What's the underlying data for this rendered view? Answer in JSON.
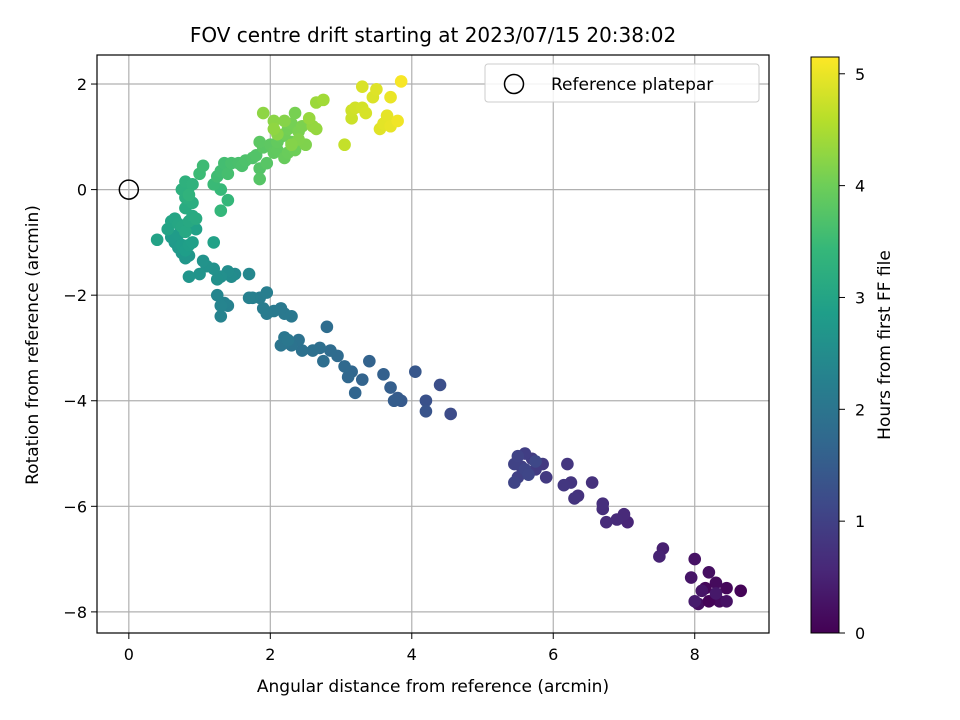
{
  "chart_data": {
    "type": "scatter",
    "title": "FOV centre drift starting at 2023/07/15 20:38:02",
    "xlabel": "Angular distance from reference (arcmin)",
    "ylabel": "Rotation from reference (arcmin)",
    "xlim": [
      -0.45,
      9.05
    ],
    "ylim": [
      -8.4,
      2.55
    ],
    "xticks": [
      "0",
      "2",
      "4",
      "6",
      "8"
    ],
    "yticks": [
      "2",
      "0",
      "−2",
      "−4",
      "−6",
      "−8"
    ],
    "grid": true,
    "legend": {
      "placement": "top-right",
      "entries": [
        "Reference platepar"
      ]
    },
    "reference_point": {
      "x": 0,
      "y": 0,
      "marker": "open-circle"
    },
    "colorbar": {
      "label": "Hours from first FF file",
      "range": [
        0,
        5.15
      ],
      "ticks": [
        "0",
        "1",
        "2",
        "3",
        "4",
        "5"
      ],
      "colormap": "viridis"
    },
    "colormap_stops": [
      "#440154",
      "#482878",
      "#3e4989",
      "#31688e",
      "#26828e",
      "#1f9e89",
      "#35b779",
      "#6ece58",
      "#b5de2b",
      "#fde725"
    ],
    "points": [
      {
        "x": 8.65,
        "y": -7.6,
        "c": 0.05
      },
      {
        "x": 8.45,
        "y": -7.55,
        "c": 0.1
      },
      {
        "x": 8.3,
        "y": -7.45,
        "c": 0.15
      },
      {
        "x": 8.2,
        "y": -7.25,
        "c": 0.2
      },
      {
        "x": 8.0,
        "y": -7.0,
        "c": 0.25
      },
      {
        "x": 7.95,
        "y": -7.35,
        "c": 0.3
      },
      {
        "x": 8.15,
        "y": -7.55,
        "c": 0.1
      },
      {
        "x": 8.35,
        "y": -7.8,
        "c": 0.15
      },
      {
        "x": 8.05,
        "y": -7.85,
        "c": 0.2
      },
      {
        "x": 8.2,
        "y": -7.8,
        "c": 0.05
      },
      {
        "x": 8.45,
        "y": -7.8,
        "c": 0.25
      },
      {
        "x": 8.1,
        "y": -7.6,
        "c": 0.3
      },
      {
        "x": 8.3,
        "y": -7.65,
        "c": 0.35
      },
      {
        "x": 8.0,
        "y": -7.8,
        "c": 0.4
      },
      {
        "x": 7.55,
        "y": -6.8,
        "c": 0.45
      },
      {
        "x": 7.5,
        "y": -6.95,
        "c": 0.5
      },
      {
        "x": 7.05,
        "y": -6.3,
        "c": 0.55
      },
      {
        "x": 7.0,
        "y": -6.15,
        "c": 0.6
      },
      {
        "x": 6.9,
        "y": -6.25,
        "c": 0.62
      },
      {
        "x": 6.75,
        "y": -6.3,
        "c": 0.65
      },
      {
        "x": 6.7,
        "y": -6.05,
        "c": 0.68
      },
      {
        "x": 6.7,
        "y": -5.95,
        "c": 0.7
      },
      {
        "x": 6.55,
        "y": -5.55,
        "c": 0.72
      },
      {
        "x": 6.35,
        "y": -5.8,
        "c": 0.75
      },
      {
        "x": 6.3,
        "y": -5.85,
        "c": 0.78
      },
      {
        "x": 6.25,
        "y": -5.55,
        "c": 0.8
      },
      {
        "x": 6.2,
        "y": -5.2,
        "c": 0.82
      },
      {
        "x": 6.15,
        "y": -5.6,
        "c": 0.84
      },
      {
        "x": 5.9,
        "y": -5.45,
        "c": 0.86
      },
      {
        "x": 5.85,
        "y": -5.2,
        "c": 0.88
      },
      {
        "x": 5.75,
        "y": -5.3,
        "c": 0.9
      },
      {
        "x": 5.7,
        "y": -5.1,
        "c": 0.92
      },
      {
        "x": 5.65,
        "y": -5.35,
        "c": 0.94
      },
      {
        "x": 5.6,
        "y": -5.0,
        "c": 0.96
      },
      {
        "x": 5.55,
        "y": -5.25,
        "c": 0.98
      },
      {
        "x": 5.5,
        "y": -5.45,
        "c": 1.0
      },
      {
        "x": 5.45,
        "y": -5.2,
        "c": 1.02
      },
      {
        "x": 5.5,
        "y": -5.05,
        "c": 1.04
      },
      {
        "x": 5.45,
        "y": -5.55,
        "c": 1.06
      },
      {
        "x": 5.6,
        "y": -5.3,
        "c": 1.08
      },
      {
        "x": 5.65,
        "y": -5.4,
        "c": 1.1
      },
      {
        "x": 5.75,
        "y": -5.15,
        "c": 1.12
      },
      {
        "x": 4.55,
        "y": -4.25,
        "c": 1.2
      },
      {
        "x": 4.4,
        "y": -3.7,
        "c": 1.25
      },
      {
        "x": 4.2,
        "y": -4.0,
        "c": 1.3
      },
      {
        "x": 4.2,
        "y": -4.2,
        "c": 1.35
      },
      {
        "x": 4.05,
        "y": -3.45,
        "c": 1.4
      },
      {
        "x": 3.85,
        "y": -4.0,
        "c": 1.45
      },
      {
        "x": 3.8,
        "y": -3.95,
        "c": 1.5
      },
      {
        "x": 3.75,
        "y": -4.0,
        "c": 1.52
      },
      {
        "x": 3.7,
        "y": -3.75,
        "c": 1.55
      },
      {
        "x": 3.6,
        "y": -3.5,
        "c": 1.58
      },
      {
        "x": 3.4,
        "y": -3.25,
        "c": 1.62
      },
      {
        "x": 3.3,
        "y": -3.6,
        "c": 1.65
      },
      {
        "x": 3.2,
        "y": -3.85,
        "c": 1.68
      },
      {
        "x": 3.15,
        "y": -3.45,
        "c": 1.7
      },
      {
        "x": 3.1,
        "y": -3.55,
        "c": 1.72
      },
      {
        "x": 3.05,
        "y": -3.35,
        "c": 1.75
      },
      {
        "x": 2.95,
        "y": -3.15,
        "c": 1.78
      },
      {
        "x": 2.85,
        "y": -3.05,
        "c": 1.8
      },
      {
        "x": 2.8,
        "y": -2.6,
        "c": 1.82
      },
      {
        "x": 2.75,
        "y": -3.25,
        "c": 1.85
      },
      {
        "x": 2.7,
        "y": -3.0,
        "c": 1.87
      },
      {
        "x": 2.6,
        "y": -3.05,
        "c": 1.9
      },
      {
        "x": 2.45,
        "y": -3.05,
        "c": 1.92
      },
      {
        "x": 2.4,
        "y": -2.85,
        "c": 1.94
      },
      {
        "x": 2.3,
        "y": -2.95,
        "c": 1.96
      },
      {
        "x": 2.2,
        "y": -2.9,
        "c": 1.98
      },
      {
        "x": 2.15,
        "y": -2.95,
        "c": 2.0
      },
      {
        "x": 2.2,
        "y": -2.8,
        "c": 2.02
      },
      {
        "x": 2.25,
        "y": -2.85,
        "c": 2.04
      },
      {
        "x": 2.3,
        "y": -2.4,
        "c": 2.06
      },
      {
        "x": 2.2,
        "y": -2.35,
        "c": 2.08
      },
      {
        "x": 2.15,
        "y": -2.25,
        "c": 2.1
      },
      {
        "x": 2.05,
        "y": -2.3,
        "c": 2.12
      },
      {
        "x": 1.95,
        "y": -2.35,
        "c": 2.14
      },
      {
        "x": 1.9,
        "y": -2.25,
        "c": 2.16
      },
      {
        "x": 1.85,
        "y": -2.05,
        "c": 2.18
      },
      {
        "x": 1.95,
        "y": -1.95,
        "c": 2.2
      },
      {
        "x": 1.75,
        "y": -2.05,
        "c": 2.22
      },
      {
        "x": 1.7,
        "y": -2.05,
        "c": 2.24
      },
      {
        "x": 1.4,
        "y": -2.2,
        "c": 2.26
      },
      {
        "x": 1.35,
        "y": -2.15,
        "c": 2.28
      },
      {
        "x": 1.3,
        "y": -2.4,
        "c": 2.3
      },
      {
        "x": 1.3,
        "y": -2.2,
        "c": 2.32
      },
      {
        "x": 1.25,
        "y": -2.0,
        "c": 2.34
      },
      {
        "x": 1.7,
        "y": -1.6,
        "c": 2.4
      },
      {
        "x": 1.5,
        "y": -1.6,
        "c": 2.45
      },
      {
        "x": 1.45,
        "y": -1.65,
        "c": 2.5
      },
      {
        "x": 1.4,
        "y": -1.55,
        "c": 2.52
      },
      {
        "x": 1.3,
        "y": -1.65,
        "c": 2.55
      },
      {
        "x": 1.25,
        "y": -1.7,
        "c": 2.58
      },
      {
        "x": 1.2,
        "y": -1.5,
        "c": 2.6
      },
      {
        "x": 1.1,
        "y": -1.45,
        "c": 2.62
      },
      {
        "x": 1.05,
        "y": -1.35,
        "c": 2.64
      },
      {
        "x": 1.0,
        "y": -1.6,
        "c": 2.66
      },
      {
        "x": 0.85,
        "y": -1.65,
        "c": 2.68
      },
      {
        "x": 0.85,
        "y": -1.25,
        "c": 2.7
      },
      {
        "x": 0.8,
        "y": -1.3,
        "c": 2.72
      },
      {
        "x": 0.75,
        "y": -1.2,
        "c": 2.74
      },
      {
        "x": 0.7,
        "y": -1.1,
        "c": 2.76
      },
      {
        "x": 0.65,
        "y": -1.0,
        "c": 2.78
      },
      {
        "x": 0.6,
        "y": -0.9,
        "c": 2.8
      },
      {
        "x": 0.7,
        "y": -0.85,
        "c": 2.82
      },
      {
        "x": 0.75,
        "y": -1.05,
        "c": 2.84
      },
      {
        "x": 0.8,
        "y": -1.15,
        "c": 2.86
      },
      {
        "x": 0.85,
        "y": -1.05,
        "c": 2.88
      },
      {
        "x": 0.9,
        "y": -1.0,
        "c": 2.9
      },
      {
        "x": 0.95,
        "y": -0.75,
        "c": 2.92
      },
      {
        "x": 1.2,
        "y": -1.0,
        "c": 2.94
      },
      {
        "x": 0.4,
        "y": -0.95,
        "c": 2.96
      },
      {
        "x": 0.55,
        "y": -0.75,
        "c": 2.98
      },
      {
        "x": 0.6,
        "y": -0.6,
        "c": 3.0
      },
      {
        "x": 0.65,
        "y": -0.55,
        "c": 3.02
      },
      {
        "x": 0.7,
        "y": -0.65,
        "c": 3.04
      },
      {
        "x": 0.75,
        "y": -0.7,
        "c": 3.06
      },
      {
        "x": 0.8,
        "y": -0.8,
        "c": 3.08
      },
      {
        "x": 0.85,
        "y": -0.6,
        "c": 3.1
      },
      {
        "x": 0.9,
        "y": -0.5,
        "c": 3.12
      },
      {
        "x": 0.95,
        "y": -0.55,
        "c": 3.14
      },
      {
        "x": 0.8,
        "y": -0.35,
        "c": 3.16
      },
      {
        "x": 0.85,
        "y": -0.2,
        "c": 3.18
      },
      {
        "x": 0.9,
        "y": -0.25,
        "c": 3.2
      },
      {
        "x": 0.8,
        "y": -0.15,
        "c": 3.22
      },
      {
        "x": 0.75,
        "y": 0.0,
        "c": 3.24
      },
      {
        "x": 0.85,
        "y": 0.05,
        "c": 3.26
      },
      {
        "x": 0.8,
        "y": 0.15,
        "c": 3.28
      },
      {
        "x": 0.9,
        "y": 0.1,
        "c": 3.3
      },
      {
        "x": 0.85,
        "y": -0.1,
        "c": 3.32
      },
      {
        "x": 1.3,
        "y": -0.4,
        "c": 3.4
      },
      {
        "x": 1.4,
        "y": -0.2,
        "c": 3.42
      },
      {
        "x": 1.3,
        "y": 0.0,
        "c": 3.45
      },
      {
        "x": 1.2,
        "y": 0.1,
        "c": 3.48
      },
      {
        "x": 1.0,
        "y": 0.3,
        "c": 3.5
      },
      {
        "x": 1.05,
        "y": 0.45,
        "c": 3.52
      },
      {
        "x": 1.25,
        "y": 0.25,
        "c": 3.54
      },
      {
        "x": 1.3,
        "y": 0.35,
        "c": 3.56
      },
      {
        "x": 1.35,
        "y": 0.5,
        "c": 3.58
      },
      {
        "x": 1.4,
        "y": 0.3,
        "c": 3.6
      },
      {
        "x": 1.45,
        "y": 0.5,
        "c": 3.62
      },
      {
        "x": 1.55,
        "y": 0.5,
        "c": 3.64
      },
      {
        "x": 1.6,
        "y": 0.45,
        "c": 3.66
      },
      {
        "x": 1.65,
        "y": 0.55,
        "c": 3.68
      },
      {
        "x": 1.75,
        "y": 0.6,
        "c": 3.7
      },
      {
        "x": 1.8,
        "y": 0.65,
        "c": 3.72
      },
      {
        "x": 1.85,
        "y": 0.4,
        "c": 3.74
      },
      {
        "x": 1.85,
        "y": 0.2,
        "c": 3.76
      },
      {
        "x": 1.95,
        "y": 0.5,
        "c": 3.78
      },
      {
        "x": 1.9,
        "y": 0.8,
        "c": 3.8
      },
      {
        "x": 1.85,
        "y": 0.9,
        "c": 3.82
      },
      {
        "x": 2.0,
        "y": 0.85,
        "c": 3.84
      },
      {
        "x": 2.05,
        "y": 0.7,
        "c": 3.86
      },
      {
        "x": 2.1,
        "y": 0.75,
        "c": 3.88
      },
      {
        "x": 2.1,
        "y": 0.9,
        "c": 3.9
      },
      {
        "x": 2.15,
        "y": 1.0,
        "c": 3.92
      },
      {
        "x": 2.2,
        "y": 0.6,
        "c": 3.94
      },
      {
        "x": 2.25,
        "y": 0.7,
        "c": 3.96
      },
      {
        "x": 2.3,
        "y": 0.9,
        "c": 3.98
      },
      {
        "x": 2.35,
        "y": 0.75,
        "c": 4.0
      },
      {
        "x": 2.2,
        "y": 1.05,
        "c": 4.02
      },
      {
        "x": 2.25,
        "y": 1.15,
        "c": 4.04
      },
      {
        "x": 2.3,
        "y": 1.25,
        "c": 4.06
      },
      {
        "x": 2.35,
        "y": 1.45,
        "c": 4.08
      },
      {
        "x": 2.4,
        "y": 1.1,
        "c": 4.1
      },
      {
        "x": 2.45,
        "y": 1.2,
        "c": 4.12
      },
      {
        "x": 2.5,
        "y": 0.85,
        "c": 4.14
      },
      {
        "x": 2.4,
        "y": 0.95,
        "c": 4.16
      },
      {
        "x": 2.3,
        "y": 0.85,
        "c": 4.18
      },
      {
        "x": 2.2,
        "y": 1.3,
        "c": 4.2
      },
      {
        "x": 2.1,
        "y": 1.05,
        "c": 4.22
      },
      {
        "x": 2.05,
        "y": 1.3,
        "c": 4.24
      },
      {
        "x": 1.9,
        "y": 1.45,
        "c": 4.26
      },
      {
        "x": 2.05,
        "y": 1.15,
        "c": 4.28
      },
      {
        "x": 2.6,
        "y": 1.2,
        "c": 4.3
      },
      {
        "x": 2.65,
        "y": 1.15,
        "c": 4.32
      },
      {
        "x": 2.55,
        "y": 1.35,
        "c": 4.34
      },
      {
        "x": 2.65,
        "y": 1.65,
        "c": 4.38
      },
      {
        "x": 2.75,
        "y": 1.7,
        "c": 4.42
      },
      {
        "x": 3.05,
        "y": 0.85,
        "c": 4.7
      },
      {
        "x": 3.15,
        "y": 1.35,
        "c": 4.75
      },
      {
        "x": 3.15,
        "y": 1.5,
        "c": 4.78
      },
      {
        "x": 3.2,
        "y": 1.55,
        "c": 4.8
      },
      {
        "x": 3.3,
        "y": 1.55,
        "c": 4.82
      },
      {
        "x": 3.35,
        "y": 1.45,
        "c": 4.84
      },
      {
        "x": 3.3,
        "y": 1.95,
        "c": 4.86
      },
      {
        "x": 3.45,
        "y": 1.75,
        "c": 4.88
      },
      {
        "x": 3.5,
        "y": 1.9,
        "c": 4.9
      },
      {
        "x": 3.55,
        "y": 1.15,
        "c": 4.92
      },
      {
        "x": 3.6,
        "y": 1.25,
        "c": 4.94
      },
      {
        "x": 3.65,
        "y": 1.4,
        "c": 4.96
      },
      {
        "x": 3.7,
        "y": 1.2,
        "c": 4.98
      },
      {
        "x": 3.7,
        "y": 1.75,
        "c": 5.0
      },
      {
        "x": 3.8,
        "y": 1.3,
        "c": 5.05
      },
      {
        "x": 3.85,
        "y": 2.05,
        "c": 5.1
      }
    ]
  }
}
